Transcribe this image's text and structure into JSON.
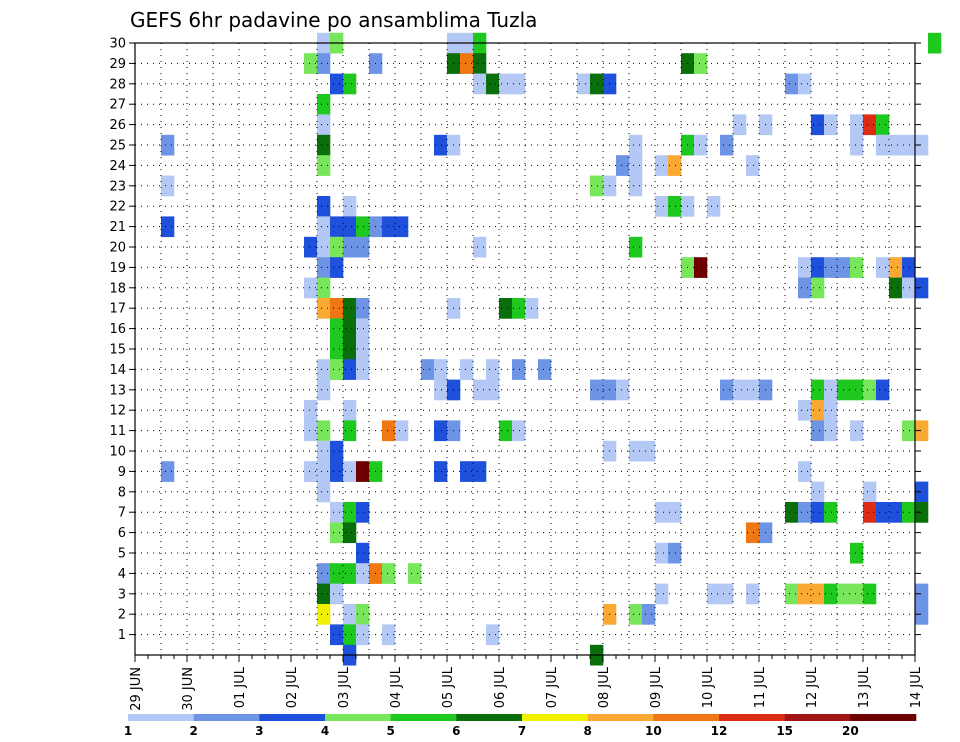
{
  "chart_data": {
    "type": "heatmap",
    "title": "GEFS 6hr padavine po ansamblima Tuzla",
    "xlabel": "",
    "ylabel": "",
    "x_tick_labels": [
      "29 JUN",
      "30 JUN",
      "01 JUL",
      "02 JUL",
      "03 JUL",
      "04 JUL",
      "05 JUL",
      "06 JUL",
      "07 JUL",
      "08 JUL",
      "09 JUL",
      "10 JUL",
      "11 JUL",
      "12 JUL",
      "13 JUL",
      "14 JUL"
    ],
    "y_range": [
      0,
      30
    ],
    "y_ticks": [
      1,
      2,
      3,
      4,
      5,
      6,
      7,
      8,
      9,
      10,
      11,
      12,
      13,
      14,
      15,
      16,
      17,
      18,
      19,
      20,
      21,
      22,
      23,
      24,
      25,
      26,
      27,
      28,
      29,
      30
    ],
    "grid": true,
    "colorbar": {
      "labels": [
        "1",
        "2",
        "3",
        "4",
        "5",
        "6",
        "7",
        "8",
        "10",
        "12",
        "15",
        "20"
      ],
      "colors": [
        "#b4c8f5",
        "#6e94e6",
        "#1e50dc",
        "#78e65a",
        "#1ec81e",
        "#0a6e0a",
        "#f0f000",
        "#faaa32",
        "#f07814",
        "#dc2d14",
        "#a01414",
        "#6e0000"
      ]
    },
    "note_index_map": "cells: [time_step_6h_from_29JUN_00, member, class]",
    "cells": [
      [
        14,
        30,
        1
      ],
      [
        15,
        30,
        4
      ],
      [
        24,
        30,
        1
      ],
      [
        25,
        30,
        1
      ],
      [
        26,
        30,
        5
      ],
      [
        61,
        30,
        5
      ],
      [
        13,
        29,
        4
      ],
      [
        14,
        29,
        2
      ],
      [
        18,
        29,
        2
      ],
      [
        24,
        29,
        6
      ],
      [
        25,
        29,
        9
      ],
      [
        26,
        29,
        6
      ],
      [
        42,
        29,
        6
      ],
      [
        43,
        29,
        4
      ],
      [
        15,
        28,
        3
      ],
      [
        16,
        28,
        5
      ],
      [
        26,
        28,
        1
      ],
      [
        27,
        28,
        6
      ],
      [
        28,
        28,
        1
      ],
      [
        29,
        28,
        1
      ],
      [
        34,
        28,
        1
      ],
      [
        35,
        28,
        6
      ],
      [
        36,
        28,
        3
      ],
      [
        50,
        28,
        2
      ],
      [
        51,
        28,
        1
      ],
      [
        14,
        27,
        5
      ],
      [
        14,
        26,
        1
      ],
      [
        46,
        26,
        1
      ],
      [
        48,
        26,
        1
      ],
      [
        52,
        26,
        3
      ],
      [
        53,
        26,
        1
      ],
      [
        55,
        26,
        1
      ],
      [
        56,
        26,
        10
      ],
      [
        57,
        26,
        5
      ],
      [
        2,
        25,
        2
      ],
      [
        14,
        25,
        6
      ],
      [
        23,
        25,
        3
      ],
      [
        24,
        25,
        1
      ],
      [
        38,
        25,
        1
      ],
      [
        42,
        25,
        5
      ],
      [
        43,
        25,
        1
      ],
      [
        45,
        25,
        2
      ],
      [
        55,
        25,
        1
      ],
      [
        57,
        25,
        1
      ],
      [
        58,
        25,
        1
      ],
      [
        59,
        25,
        1
      ],
      [
        60,
        25,
        1
      ],
      [
        14,
        24,
        4
      ],
      [
        37,
        24,
        2
      ],
      [
        38,
        24,
        1
      ],
      [
        40,
        24,
        1
      ],
      [
        41,
        24,
        8
      ],
      [
        47,
        24,
        1
      ],
      [
        2,
        23,
        1
      ],
      [
        35,
        23,
        4
      ],
      [
        36,
        23,
        1
      ],
      [
        38,
        23,
        1
      ],
      [
        14,
        22,
        3
      ],
      [
        16,
        22,
        1
      ],
      [
        40,
        22,
        1
      ],
      [
        41,
        22,
        5
      ],
      [
        42,
        22,
        1
      ],
      [
        44,
        22,
        1
      ],
      [
        2,
        21,
        3
      ],
      [
        14,
        21,
        1
      ],
      [
        15,
        21,
        3
      ],
      [
        16,
        21,
        3
      ],
      [
        17,
        21,
        5
      ],
      [
        18,
        21,
        2
      ],
      [
        19,
        21,
        3
      ],
      [
        20,
        21,
        3
      ],
      [
        13,
        20,
        3
      ],
      [
        14,
        20,
        1
      ],
      [
        15,
        20,
        4
      ],
      [
        16,
        20,
        2
      ],
      [
        17,
        20,
        2
      ],
      [
        26,
        20,
        1
      ],
      [
        38,
        20,
        5
      ],
      [
        14,
        19,
        2
      ],
      [
        15,
        19,
        3
      ],
      [
        42,
        19,
        4
      ],
      [
        43,
        19,
        12
      ],
      [
        51,
        19,
        1
      ],
      [
        52,
        19,
        3
      ],
      [
        53,
        19,
        2
      ],
      [
        54,
        19,
        2
      ],
      [
        55,
        19,
        4
      ],
      [
        57,
        19,
        1
      ],
      [
        58,
        19,
        8
      ],
      [
        59,
        19,
        3
      ],
      [
        13,
        18,
        1
      ],
      [
        14,
        18,
        4
      ],
      [
        51,
        18,
        2
      ],
      [
        52,
        18,
        4
      ],
      [
        58,
        18,
        6
      ],
      [
        59,
        18,
        1
      ],
      [
        60,
        18,
        3
      ],
      [
        14,
        17,
        8
      ],
      [
        15,
        17,
        9
      ],
      [
        16,
        17,
        6
      ],
      [
        17,
        17,
        2
      ],
      [
        24,
        17,
        1
      ],
      [
        28,
        17,
        6
      ],
      [
        29,
        17,
        5
      ],
      [
        30,
        17,
        1
      ],
      [
        15,
        16,
        5
      ],
      [
        16,
        16,
        6
      ],
      [
        17,
        16,
        1
      ],
      [
        15,
        15,
        5
      ],
      [
        16,
        15,
        6
      ],
      [
        17,
        15,
        1
      ],
      [
        14,
        14,
        1
      ],
      [
        15,
        14,
        4
      ],
      [
        16,
        14,
        3
      ],
      [
        17,
        14,
        1
      ],
      [
        22,
        14,
        2
      ],
      [
        23,
        14,
        1
      ],
      [
        25,
        14,
        1
      ],
      [
        27,
        14,
        1
      ],
      [
        29,
        14,
        2
      ],
      [
        31,
        14,
        2
      ],
      [
        14,
        13,
        1
      ],
      [
        23,
        13,
        1
      ],
      [
        24,
        13,
        3
      ],
      [
        26,
        13,
        1
      ],
      [
        27,
        13,
        1
      ],
      [
        35,
        13,
        2
      ],
      [
        36,
        13,
        2
      ],
      [
        37,
        13,
        1
      ],
      [
        45,
        13,
        2
      ],
      [
        46,
        13,
        1
      ],
      [
        47,
        13,
        1
      ],
      [
        48,
        13,
        2
      ],
      [
        52,
        13,
        5
      ],
      [
        53,
        13,
        1
      ],
      [
        54,
        13,
        5
      ],
      [
        55,
        13,
        5
      ],
      [
        56,
        13,
        4
      ],
      [
        57,
        13,
        3
      ],
      [
        13,
        12,
        1
      ],
      [
        16,
        12,
        1
      ],
      [
        51,
        12,
        1
      ],
      [
        52,
        12,
        8
      ],
      [
        53,
        12,
        1
      ],
      [
        13,
        11,
        1
      ],
      [
        14,
        11,
        4
      ],
      [
        16,
        11,
        5
      ],
      [
        19,
        11,
        9
      ],
      [
        20,
        11,
        1
      ],
      [
        23,
        11,
        3
      ],
      [
        24,
        11,
        2
      ],
      [
        28,
        11,
        5
      ],
      [
        29,
        11,
        1
      ],
      [
        52,
        11,
        2
      ],
      [
        53,
        11,
        1
      ],
      [
        55,
        11,
        1
      ],
      [
        59,
        11,
        4
      ],
      [
        60,
        11,
        8
      ],
      [
        14,
        10,
        1
      ],
      [
        15,
        10,
        3
      ],
      [
        36,
        10,
        1
      ],
      [
        38,
        10,
        1
      ],
      [
        39,
        10,
        1
      ],
      [
        2,
        9,
        2
      ],
      [
        13,
        9,
        1
      ],
      [
        14,
        9,
        1
      ],
      [
        15,
        9,
        3
      ],
      [
        16,
        9,
        1
      ],
      [
        17,
        9,
        12
      ],
      [
        18,
        9,
        5
      ],
      [
        23,
        9,
        3
      ],
      [
        25,
        9,
        3
      ],
      [
        26,
        9,
        3
      ],
      [
        51,
        9,
        1
      ],
      [
        14,
        8,
        1
      ],
      [
        52,
        8,
        1
      ],
      [
        56,
        8,
        1
      ],
      [
        60,
        8,
        3
      ],
      [
        15,
        7,
        1
      ],
      [
        16,
        7,
        5
      ],
      [
        17,
        7,
        3
      ],
      [
        40,
        7,
        1
      ],
      [
        41,
        7,
        1
      ],
      [
        50,
        7,
        6
      ],
      [
        51,
        7,
        2
      ],
      [
        52,
        7,
        3
      ],
      [
        53,
        7,
        5
      ],
      [
        56,
        7,
        10
      ],
      [
        57,
        7,
        3
      ],
      [
        58,
        7,
        3
      ],
      [
        59,
        7,
        5
      ],
      [
        60,
        7,
        6
      ],
      [
        15,
        6,
        4
      ],
      [
        16,
        6,
        6
      ],
      [
        47,
        6,
        9
      ],
      [
        48,
        6,
        2
      ],
      [
        17,
        5,
        3
      ],
      [
        40,
        5,
        1
      ],
      [
        41,
        5,
        2
      ],
      [
        55,
        5,
        5
      ],
      [
        14,
        4,
        2
      ],
      [
        15,
        4,
        5
      ],
      [
        16,
        4,
        5
      ],
      [
        17,
        4,
        1
      ],
      [
        18,
        4,
        9
      ],
      [
        19,
        4,
        4
      ],
      [
        21,
        4,
        4
      ],
      [
        14,
        3,
        6
      ],
      [
        15,
        3,
        1
      ],
      [
        40,
        3,
        1
      ],
      [
        44,
        3,
        1
      ],
      [
        45,
        3,
        1
      ],
      [
        47,
        3,
        1
      ],
      [
        50,
        3,
        4
      ],
      [
        51,
        3,
        8
      ],
      [
        52,
        3,
        8
      ],
      [
        53,
        3,
        5
      ],
      [
        54,
        3,
        4
      ],
      [
        55,
        3,
        4
      ],
      [
        56,
        3,
        5
      ],
      [
        60,
        3,
        2
      ],
      [
        14,
        2,
        7
      ],
      [
        16,
        2,
        1
      ],
      [
        17,
        2,
        4
      ],
      [
        36,
        2,
        8
      ],
      [
        38,
        2,
        4
      ],
      [
        39,
        2,
        2
      ],
      [
        60,
        2,
        2
      ],
      [
        15,
        1,
        3
      ],
      [
        16,
        1,
        5
      ],
      [
        17,
        1,
        1
      ],
      [
        19,
        1,
        1
      ],
      [
        27,
        1,
        1
      ],
      [
        16,
        0,
        3
      ],
      [
        35,
        0,
        6
      ]
    ]
  }
}
